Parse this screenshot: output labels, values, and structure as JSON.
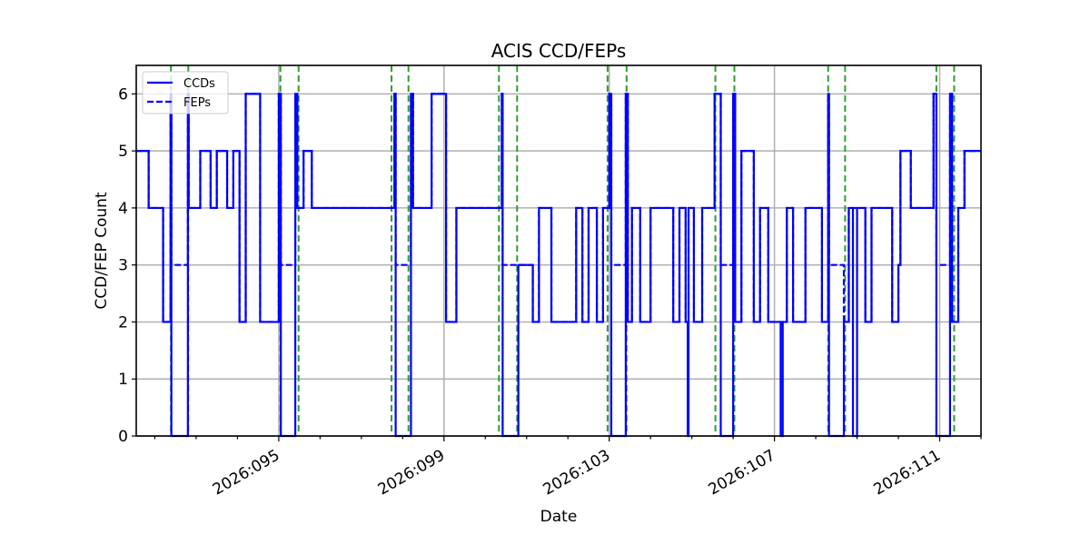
{
  "chart_data": {
    "type": "line",
    "title": "ACIS CCD/FEPs",
    "xlabel": "Date",
    "ylabel": "CCD/FEP Count",
    "ylim": [
      0,
      6.5
    ],
    "xlim_day": [
      91.55,
      112.0
    ],
    "yticks": [
      0,
      1,
      2,
      3,
      4,
      5,
      6
    ],
    "xticks": [
      {
        "day": 95,
        "label": "2026:095"
      },
      {
        "day": 99,
        "label": "2026:099"
      },
      {
        "day": 103,
        "label": "2026:103"
      },
      {
        "day": 107,
        "label": "2026:107"
      },
      {
        "day": 111,
        "label": "2026:111"
      }
    ],
    "grid": true,
    "legend": {
      "position": "upper left",
      "entries": [
        "CCDs",
        "FEPs"
      ]
    },
    "series": [
      {
        "name": "CCDs",
        "style": "solid",
        "color": "#0000ff",
        "steps": [
          [
            91.55,
            5
          ],
          [
            91.85,
            4
          ],
          [
            92.2,
            2
          ],
          [
            92.38,
            6
          ],
          [
            92.4,
            0
          ],
          [
            92.8,
            6
          ],
          [
            92.82,
            4
          ],
          [
            93.1,
            5
          ],
          [
            93.35,
            4
          ],
          [
            93.5,
            5
          ],
          [
            93.75,
            4
          ],
          [
            93.9,
            5
          ],
          [
            94.05,
            2
          ],
          [
            94.2,
            6
          ],
          [
            94.55,
            2
          ],
          [
            95.0,
            6
          ],
          [
            95.05,
            0
          ],
          [
            95.4,
            6
          ],
          [
            95.45,
            4
          ],
          [
            95.6,
            5
          ],
          [
            95.8,
            4
          ],
          [
            97.8,
            6
          ],
          [
            97.83,
            0
          ],
          [
            98.2,
            6
          ],
          [
            98.25,
            4
          ],
          [
            98.7,
            6
          ],
          [
            99.05,
            2
          ],
          [
            99.3,
            4
          ],
          [
            100.4,
            6
          ],
          [
            100.42,
            0
          ],
          [
            100.8,
            3
          ],
          [
            101.15,
            2
          ],
          [
            101.3,
            4
          ],
          [
            101.6,
            2
          ],
          [
            102.2,
            4
          ],
          [
            102.35,
            2
          ],
          [
            102.5,
            4
          ],
          [
            102.7,
            2
          ],
          [
            102.85,
            4
          ],
          [
            103.0,
            6
          ],
          [
            103.05,
            0
          ],
          [
            103.4,
            6
          ],
          [
            103.45,
            2
          ],
          [
            103.55,
            4
          ],
          [
            103.75,
            2
          ],
          [
            104.0,
            4
          ],
          [
            104.55,
            2
          ],
          [
            104.7,
            4
          ],
          [
            104.85,
            2
          ],
          [
            104.9,
            0
          ],
          [
            104.92,
            4
          ],
          [
            105.05,
            2
          ],
          [
            105.25,
            4
          ],
          [
            105.55,
            6
          ],
          [
            105.7,
            0
          ],
          [
            106.0,
            6
          ],
          [
            106.05,
            2
          ],
          [
            106.2,
            5
          ],
          [
            106.5,
            2
          ],
          [
            106.65,
            4
          ],
          [
            106.85,
            2
          ],
          [
            107.15,
            0
          ],
          [
            107.2,
            2
          ],
          [
            107.3,
            4
          ],
          [
            107.45,
            2
          ],
          [
            107.75,
            4
          ],
          [
            108.15,
            2
          ],
          [
            108.3,
            6
          ],
          [
            108.32,
            0
          ],
          [
            108.68,
            2
          ],
          [
            108.8,
            4
          ],
          [
            108.9,
            0
          ],
          [
            109.0,
            4
          ],
          [
            109.2,
            2
          ],
          [
            109.35,
            4
          ],
          [
            109.85,
            2
          ],
          [
            110.0,
            3
          ],
          [
            110.05,
            5
          ],
          [
            110.3,
            4
          ],
          [
            110.85,
            6
          ],
          [
            110.92,
            0
          ],
          [
            111.25,
            6
          ],
          [
            111.3,
            2
          ],
          [
            111.45,
            4
          ],
          [
            111.6,
            5
          ],
          [
            112.0,
            5
          ]
        ]
      },
      {
        "name": "FEPs",
        "style": "dashed",
        "color": "#0000ff",
        "steps": [
          [
            91.55,
            5
          ],
          [
            91.85,
            4
          ],
          [
            92.2,
            2
          ],
          [
            92.38,
            6
          ],
          [
            92.4,
            3
          ],
          [
            92.8,
            6
          ],
          [
            92.82,
            4
          ],
          [
            93.1,
            5
          ],
          [
            93.35,
            4
          ],
          [
            93.5,
            5
          ],
          [
            93.75,
            4
          ],
          [
            93.9,
            5
          ],
          [
            94.05,
            2
          ],
          [
            94.2,
            6
          ],
          [
            94.55,
            2
          ],
          [
            95.0,
            6
          ],
          [
            95.05,
            3
          ],
          [
            95.4,
            6
          ],
          [
            95.45,
            4
          ],
          [
            95.6,
            5
          ],
          [
            95.8,
            4
          ],
          [
            97.8,
            6
          ],
          [
            97.83,
            3
          ],
          [
            98.2,
            6
          ],
          [
            98.25,
            4
          ],
          [
            98.7,
            6
          ],
          [
            99.05,
            2
          ],
          [
            99.3,
            4
          ],
          [
            100.4,
            6
          ],
          [
            100.42,
            3
          ],
          [
            101.15,
            2
          ],
          [
            101.3,
            4
          ],
          [
            101.6,
            2
          ],
          [
            102.2,
            4
          ],
          [
            102.35,
            2
          ],
          [
            102.5,
            4
          ],
          [
            102.7,
            2
          ],
          [
            102.85,
            4
          ],
          [
            103.0,
            6
          ],
          [
            103.05,
            3
          ],
          [
            103.4,
            6
          ],
          [
            103.45,
            2
          ],
          [
            103.55,
            4
          ],
          [
            103.75,
            2
          ],
          [
            104.0,
            4
          ],
          [
            104.55,
            2
          ],
          [
            104.7,
            4
          ],
          [
            104.85,
            2
          ],
          [
            104.92,
            4
          ],
          [
            105.05,
            2
          ],
          [
            105.25,
            4
          ],
          [
            105.55,
            6
          ],
          [
            105.7,
            3
          ],
          [
            106.0,
            6
          ],
          [
            106.05,
            2
          ],
          [
            106.2,
            5
          ],
          [
            106.5,
            2
          ],
          [
            106.65,
            4
          ],
          [
            106.85,
            2
          ],
          [
            107.3,
            4
          ],
          [
            107.45,
            2
          ],
          [
            107.75,
            4
          ],
          [
            108.15,
            2
          ],
          [
            108.3,
            6
          ],
          [
            108.32,
            3
          ],
          [
            108.68,
            2
          ],
          [
            108.8,
            4
          ],
          [
            109.2,
            2
          ],
          [
            109.35,
            4
          ],
          [
            109.85,
            2
          ],
          [
            110.0,
            3
          ],
          [
            110.05,
            5
          ],
          [
            110.3,
            4
          ],
          [
            110.85,
            6
          ],
          [
            110.92,
            3
          ],
          [
            111.25,
            6
          ],
          [
            111.3,
            2
          ],
          [
            111.45,
            4
          ],
          [
            111.6,
            5
          ],
          [
            112.0,
            5
          ]
        ]
      }
    ],
    "annotations": {
      "vertical_dashed_lines_color": "#2ca02c",
      "vertical_dashed_lines_day": [
        92.39,
        92.81,
        95.04,
        95.48,
        97.73,
        98.14,
        100.33,
        100.77,
        102.96,
        103.42,
        105.57,
        106.03,
        108.3,
        108.71,
        110.92,
        111.35
      ]
    }
  }
}
